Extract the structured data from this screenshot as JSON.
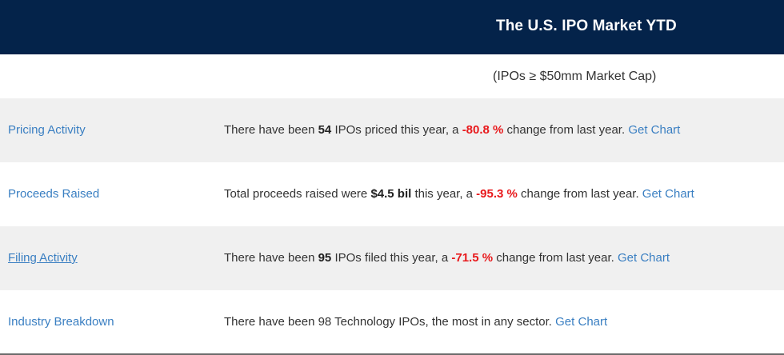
{
  "header": {
    "title": "The U.S. IPO Market YTD"
  },
  "subtitle": "(IPOs ≥ $50mm Market Cap)",
  "rows": [
    {
      "label": "Pricing Activity",
      "pre": "There have been ",
      "value": "54",
      "mid": " IPOs priced this year, a ",
      "change": "-80.8 %",
      "post": " change from last year. ",
      "link": "Get Chart"
    },
    {
      "label": "Proceeds Raised",
      "pre": "Total proceeds raised were ",
      "value": "$4.5 bil",
      "mid": " this year, a ",
      "change": "-95.3 %",
      "post": " change from last year. ",
      "link": "Get Chart"
    },
    {
      "label": "Filing Activity",
      "pre": "There have been ",
      "value": "95",
      "mid": " IPOs filed this year, a ",
      "change": "-71.5 %",
      "post": " change from last year. ",
      "link": "Get Chart"
    },
    {
      "label": "Industry Breakdown",
      "text": "There have been 98 Technology IPOs, the most in any sector. ",
      "link": "Get Chart"
    }
  ],
  "colors": {
    "header_bg": "#04234a",
    "link": "#3a7fc2",
    "negative": "#e8191c",
    "row_shade": "#f0f0f0"
  }
}
